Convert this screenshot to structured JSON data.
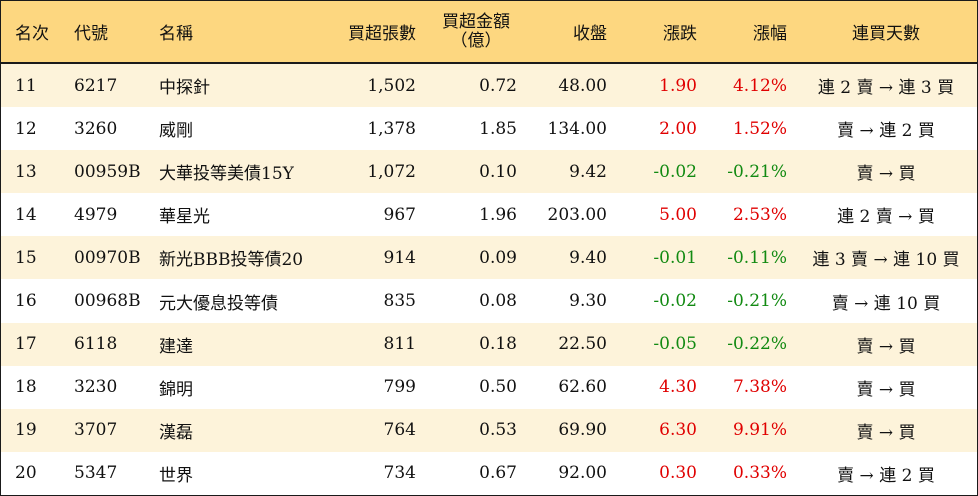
{
  "headers": {
    "rank": "名次",
    "code": "代號",
    "name": "名稱",
    "net_buy_lots": "買超張數",
    "net_buy_amount_line1": "買超金額",
    "net_buy_amount_line2": "（億）",
    "close": "收盤",
    "change": "漲跌",
    "change_pct": "漲幅",
    "consecutive_days": "連買天數"
  },
  "colors": {
    "up": "#e00000",
    "down": "#128a12",
    "header_bg": "#fdd780",
    "stripe_bg": "#fdf3da"
  },
  "rows": [
    {
      "rank": "11",
      "code": "6217",
      "name": "中探針",
      "lots": "1,502",
      "amount": "0.72",
      "close": "48.00",
      "change": "1.90",
      "pct": "4.12%",
      "days": "連 2 賣 → 連 3 買",
      "dir": "up"
    },
    {
      "rank": "12",
      "code": "3260",
      "name": "威剛",
      "lots": "1,378",
      "amount": "1.85",
      "close": "134.00",
      "change": "2.00",
      "pct": "1.52%",
      "days": "賣 → 連 2 買",
      "dir": "up"
    },
    {
      "rank": "13",
      "code": "00959B",
      "name": "大華投等美債15Y",
      "lots": "1,072",
      "amount": "0.10",
      "close": "9.42",
      "change": "-0.02",
      "pct": "-0.21%",
      "days": "賣 → 買",
      "dir": "down"
    },
    {
      "rank": "14",
      "code": "4979",
      "name": "華星光",
      "lots": "967",
      "amount": "1.96",
      "close": "203.00",
      "change": "5.00",
      "pct": "2.53%",
      "days": "連 2 賣 → 買",
      "dir": "up"
    },
    {
      "rank": "15",
      "code": "00970B",
      "name": "新光BBB投等債20",
      "lots": "914",
      "amount": "0.09",
      "close": "9.40",
      "change": "-0.01",
      "pct": "-0.11%",
      "days": "連 3 賣 → 連 10 買",
      "dir": "down"
    },
    {
      "rank": "16",
      "code": "00968B",
      "name": "元大優息投等債",
      "lots": "835",
      "amount": "0.08",
      "close": "9.30",
      "change": "-0.02",
      "pct": "-0.21%",
      "days": "賣 → 連 10 買",
      "dir": "down"
    },
    {
      "rank": "17",
      "code": "6118",
      "name": "建達",
      "lots": "811",
      "amount": "0.18",
      "close": "22.50",
      "change": "-0.05",
      "pct": "-0.22%",
      "days": "賣 → 買",
      "dir": "down"
    },
    {
      "rank": "18",
      "code": "3230",
      "name": "錦明",
      "lots": "799",
      "amount": "0.50",
      "close": "62.60",
      "change": "4.30",
      "pct": "7.38%",
      "days": "賣 → 買",
      "dir": "up"
    },
    {
      "rank": "19",
      "code": "3707",
      "name": "漢磊",
      "lots": "764",
      "amount": "0.53",
      "close": "69.90",
      "change": "6.30",
      "pct": "9.91%",
      "days": "賣 → 買",
      "dir": "up"
    },
    {
      "rank": "20",
      "code": "5347",
      "name": "世界",
      "lots": "734",
      "amount": "0.67",
      "close": "92.00",
      "change": "0.30",
      "pct": "0.33%",
      "days": "賣 → 連 2 買",
      "dir": "up"
    }
  ]
}
